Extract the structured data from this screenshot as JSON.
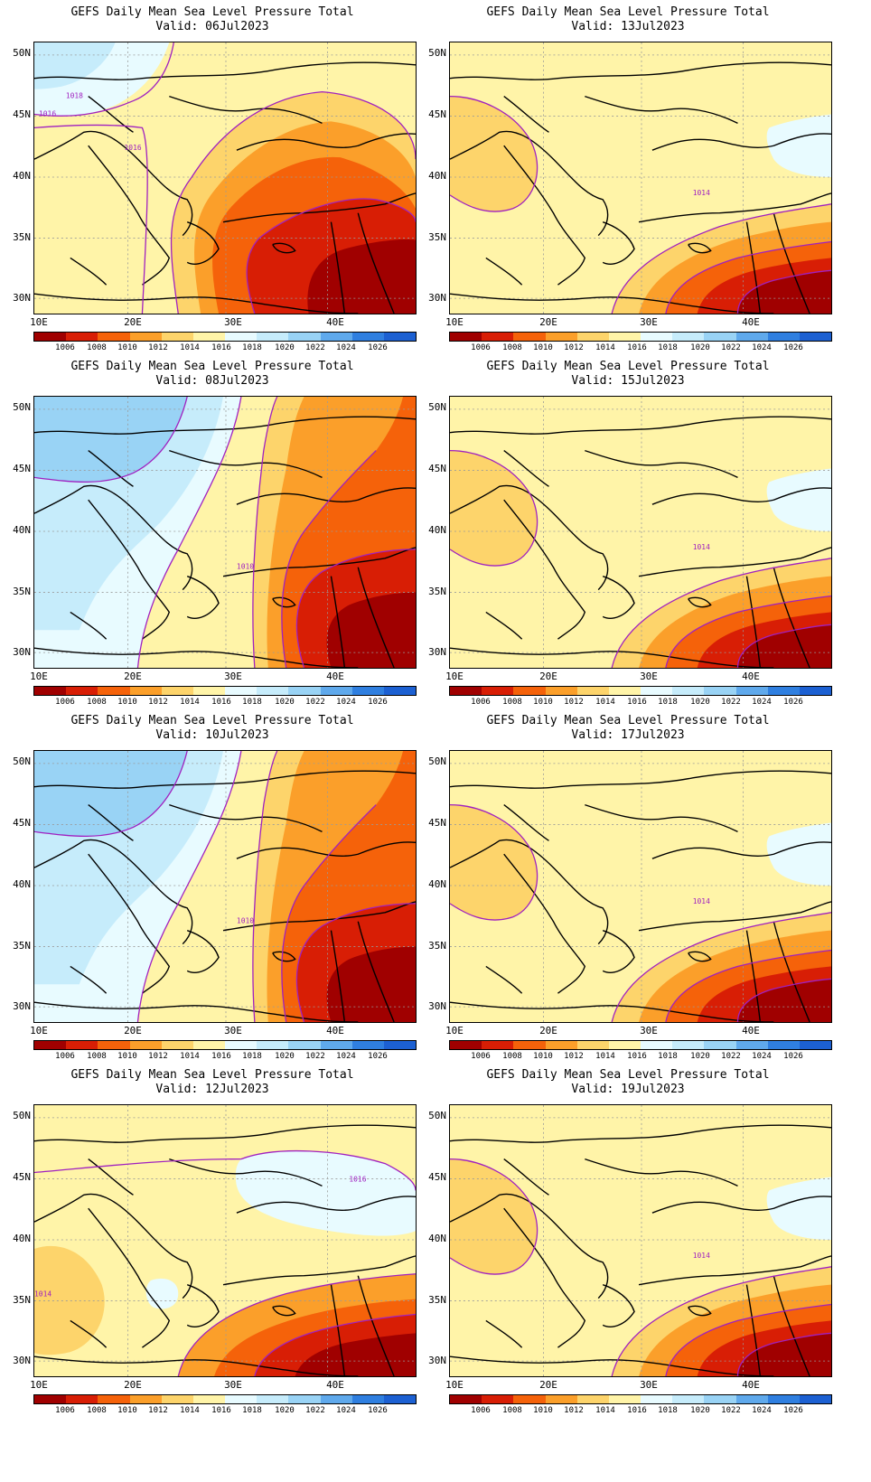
{
  "panels": [
    {
      "title": "GEFS Daily Mean Sea Level Pressure Total",
      "valid": "Valid:  06Jul2023",
      "pattern": "A"
    },
    {
      "title": "GEFS Daily Mean Sea Level Pressure Total",
      "valid": "Valid:  13Jul2023",
      "pattern": "B"
    },
    {
      "title": "GEFS Daily Mean Sea Level Pressure Total",
      "valid": "Valid:  08Jul2023",
      "pattern": "C"
    },
    {
      "title": "GEFS Daily Mean Sea Level Pressure Total",
      "valid": "Valid:  15Jul2023",
      "pattern": "B"
    },
    {
      "title": "GEFS Daily Mean Sea Level Pressure Total",
      "valid": "Valid:  10Jul2023",
      "pattern": "C"
    },
    {
      "title": "GEFS Daily Mean Sea Level Pressure Total",
      "valid": "Valid:  17Jul2023",
      "pattern": "B"
    },
    {
      "title": "GEFS Daily Mean Sea Level Pressure Total",
      "valid": "Valid:  12Jul2023",
      "pattern": "D"
    },
    {
      "title": "GEFS Daily Mean Sea Level Pressure Total",
      "valid": "Valid:  19Jul2023",
      "pattern": "B"
    }
  ],
  "lat_labels": [
    "50N",
    "45N",
    "40N",
    "35N",
    "30N"
  ],
  "lon_labels": [
    "10E",
    "20E",
    "30E",
    "40E"
  ],
  "colorbar": {
    "labels": [
      "1006",
      "1008",
      "1010",
      "1012",
      "1014",
      "1016",
      "1018",
      "1020",
      "1022",
      "1024",
      "1026"
    ],
    "colors": [
      "#a00000",
      "#d81e05",
      "#f5620a",
      "#fb9f2a",
      "#fdd46b",
      "#fff4a8",
      "#e8fbff",
      "#c6ecfb",
      "#99d3f5",
      "#5fa9ec",
      "#2f7fe0",
      "#1c60d2"
    ]
  },
  "contour_labels": {
    "A": [
      "1018",
      "1016",
      "1016"
    ],
    "B": [
      "1014"
    ],
    "C": [
      "1010"
    ],
    "D": [
      "1016",
      "1014"
    ]
  }
}
